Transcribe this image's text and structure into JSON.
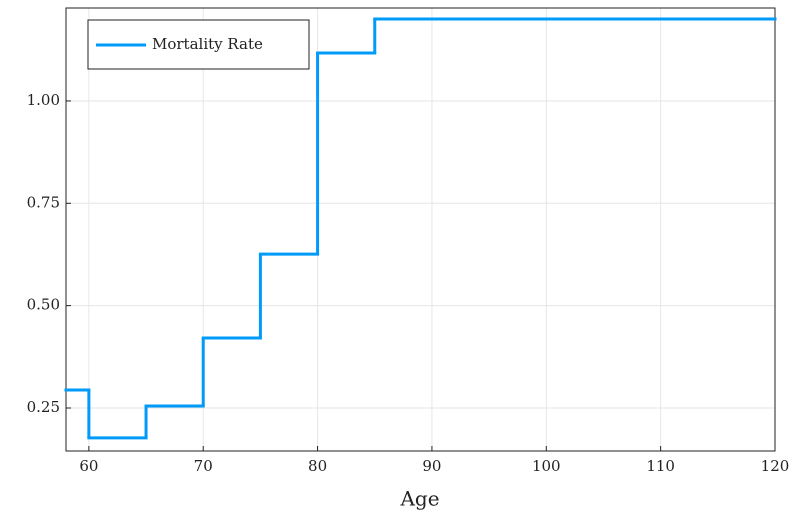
{
  "chart_data": {
    "type": "step",
    "x_label": "Age",
    "x": [
      58,
      60,
      65,
      70,
      75,
      80,
      85
    ],
    "series": [
      {
        "name": "Mortality Rate",
        "color": "#009af9",
        "values": [
          0.294,
          0.177,
          0.255,
          0.421,
          0.626,
          1.117,
          1.2
        ]
      }
    ],
    "xlim": [
      58,
      120
    ],
    "ylim": [
      0.145,
      1.227
    ],
    "xticks": [
      60,
      70,
      80,
      90,
      100,
      110,
      120
    ],
    "yticks": [
      0.25,
      {
        "value": 0.5,
        "label": "0.50"
      },
      0.75,
      {
        "value": 1.0,
        "label": "1.00"
      }
    ],
    "grid": true,
    "legend": "top-left"
  }
}
